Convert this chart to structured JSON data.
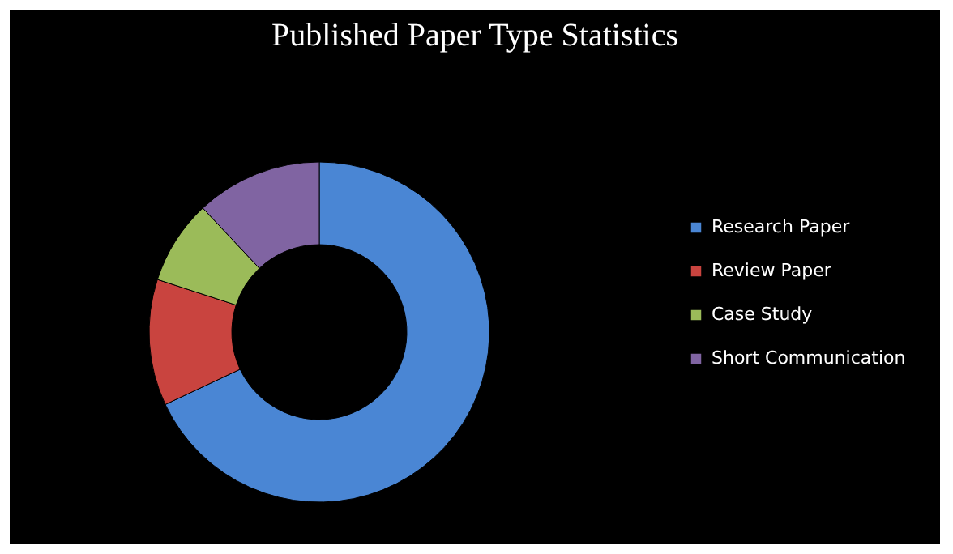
{
  "chart_data": {
    "type": "donut",
    "title": "Published Paper Type Statistics",
    "categories": [
      "Research Paper",
      "Review Paper",
      "Case Study",
      "Short Communication"
    ],
    "values": [
      68,
      12,
      8,
      12
    ],
    "colors": [
      "#4a86d4",
      "#c9443f",
      "#9bbb59",
      "#8064a2"
    ],
    "legend": "right"
  }
}
